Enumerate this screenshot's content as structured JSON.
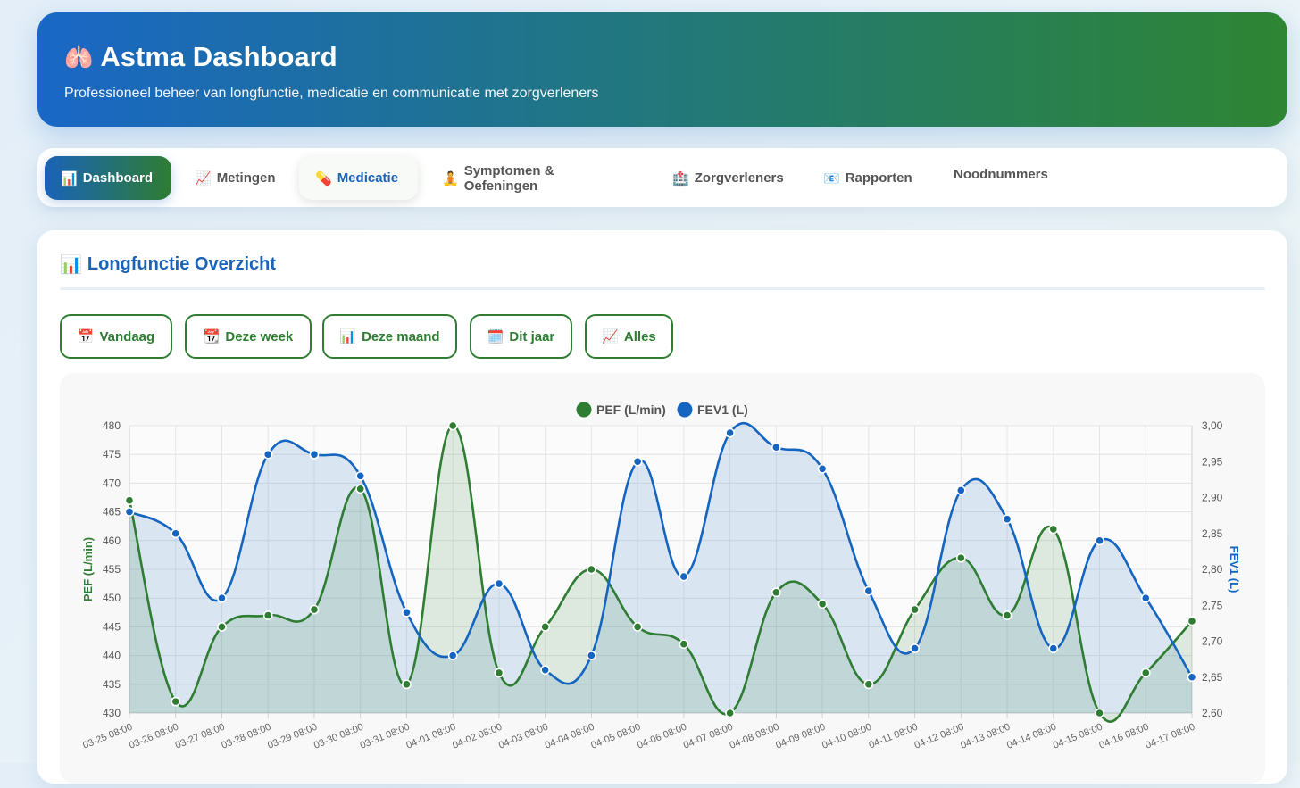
{
  "header": {
    "icon": "lungs-icon",
    "title": "Astma Dashboard",
    "subtitle": "Professioneel beheer van longfunctie, medicatie en communicatie met zorgverleners"
  },
  "tabs": [
    {
      "icon": "📊",
      "icon_name": "bar-chart-icon",
      "label": "Dashboard",
      "state": "active"
    },
    {
      "icon": "📈",
      "icon_name": "trend-chart-icon",
      "label": "Metingen",
      "state": "normal"
    },
    {
      "icon": "💊",
      "icon_name": "pill-icon",
      "label": "Medicatie",
      "state": "hover"
    },
    {
      "icon": "🧘",
      "icon_name": "meditation-icon",
      "label": "Symptomen & Oefeningen",
      "state": "normal"
    },
    {
      "icon": "🏥",
      "icon_name": "hospital-icon",
      "label": "Zorgverleners",
      "state": "normal"
    },
    {
      "icon": "📧",
      "icon_name": "email-icon",
      "label": "Rapporten",
      "state": "normal"
    },
    {
      "icon": "",
      "icon_name": "",
      "label": "Noodnummers",
      "state": "normal"
    }
  ],
  "overview": {
    "icon": "📊",
    "title": "Longfunctie Overzicht",
    "filters": [
      {
        "icon": "📅",
        "icon_name": "calendar-icon",
        "label": "Vandaag"
      },
      {
        "icon": "📆",
        "icon_name": "calendar-week-icon",
        "label": "Deze week"
      },
      {
        "icon": "📊",
        "icon_name": "bar-chart-icon",
        "label": "Deze maand"
      },
      {
        "icon": "🗓️",
        "icon_name": "calendar-year-icon",
        "label": "Dit jaar"
      },
      {
        "icon": "📈",
        "icon_name": "trend-chart-icon",
        "label": "Alles"
      }
    ]
  },
  "colors": {
    "pef": "#2e7d32",
    "fev1": "#1565c0",
    "accent": "#1a63b8"
  },
  "chart_data": {
    "type": "line",
    "x": [
      "03-25 08:00",
      "03-26 08:00",
      "03-27 08:00",
      "03-28 08:00",
      "03-29 08:00",
      "03-30 08:00",
      "03-31 08:00",
      "04-01 08:00",
      "04-02 08:00",
      "04-03 08:00",
      "04-04 08:00",
      "04-05 08:00",
      "04-06 08:00",
      "04-07 08:00",
      "04-08 08:00",
      "04-09 08:00",
      "04-10 08:00",
      "04-11 08:00",
      "04-12 08:00",
      "04-13 08:00",
      "04-14 08:00",
      "04-15 08:00",
      "04-16 08:00",
      "04-17 08:00"
    ],
    "series": [
      {
        "name": "PEF (L/min)",
        "axis": "left",
        "values": [
          467,
          432,
          445,
          447,
          448,
          469,
          435,
          480,
          437,
          445,
          455,
          445,
          442,
          430,
          451,
          449,
          435,
          448,
          457,
          447,
          462,
          430,
          437,
          446
        ]
      },
      {
        "name": "FEV1 (L)",
        "axis": "right",
        "values": [
          2.88,
          2.85,
          2.76,
          2.96,
          2.96,
          2.93,
          2.74,
          2.68,
          2.78,
          2.66,
          2.68,
          2.95,
          2.79,
          2.99,
          2.97,
          2.94,
          2.77,
          2.69,
          2.91,
          2.87,
          2.69,
          2.84,
          2.76,
          2.65
        ]
      }
    ],
    "ylabel": "PEF (L/min)",
    "y2label": "FEV1 (L)",
    "ylim": [
      430,
      480
    ],
    "y2lim": [
      2.6,
      3.0
    ],
    "yticks": [
      "480",
      "475",
      "470",
      "465",
      "460",
      "455",
      "450",
      "445",
      "440",
      "435",
      "430"
    ],
    "y2ticks": [
      "3,00",
      "2,95",
      "2,90",
      "2,85",
      "2,80",
      "2,75",
      "2,70",
      "2,65",
      "2,60"
    ],
    "legend": "top-center",
    "grid": true
  }
}
